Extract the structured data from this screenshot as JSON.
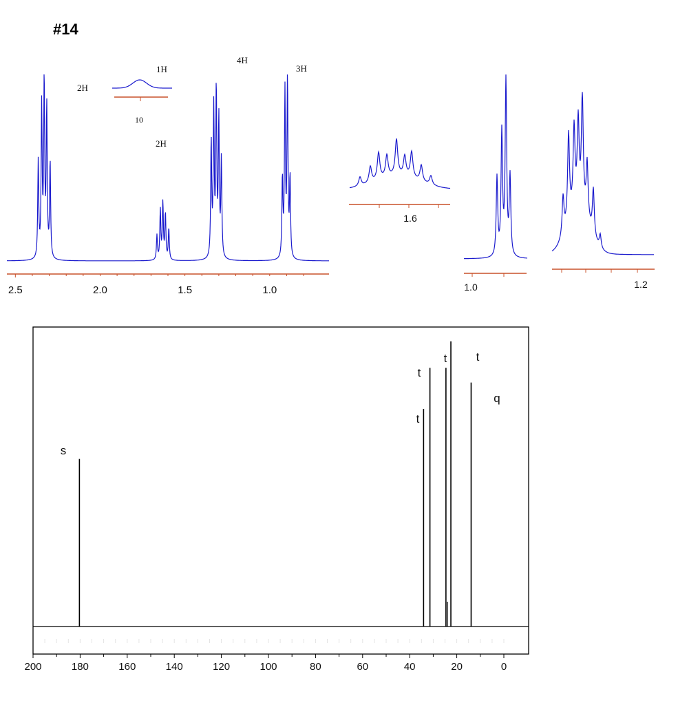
{
  "page_title": "#14",
  "colors": {
    "h_spectrum": "#1a1acd",
    "h_axis": "#c8502a",
    "c_spectrum": "#000000",
    "c_frame": "#000000"
  },
  "chart_data": [
    {
      "id": "h1_nmr",
      "type": "line",
      "title": "",
      "xlabel": "",
      "ylabel": "",
      "x_unit": "ppm",
      "xlim": [
        2.55,
        0.65
      ],
      "x_direction": "reversed",
      "x_ticks": [
        2.5,
        2.0,
        1.5,
        1.0
      ],
      "x_tick_labels": [
        "2.5",
        "2.0",
        "1.5",
        "1.0"
      ],
      "grid": false,
      "series": [
        {
          "peaks": [
            {
              "shift": 2.33,
              "lines": [
                2.365,
                2.345,
                2.33,
                2.315,
                2.295
              ],
              "heights": [
                0.55,
                0.85,
                1.0,
                0.85,
                0.55
              ]
            },
            {
              "shift": 1.63,
              "lines": [
                1.665,
                1.645,
                1.63,
                1.615,
                1.595
              ],
              "heights": [
                0.14,
                0.28,
                0.32,
                0.26,
                0.18
              ]
            },
            {
              "shift": 1.32,
              "lines": [
                1.345,
                1.33,
                1.315,
                1.3,
                1.285
              ],
              "heights": [
                0.66,
                0.83,
                0.95,
                0.78,
                0.55
              ]
            },
            {
              "shift": 0.9,
              "lines": [
                0.925,
                0.91,
                0.895,
                0.88
              ],
              "heights": [
                0.45,
                0.93,
                1.0,
                0.45
              ]
            }
          ]
        }
      ],
      "integrations": [
        {
          "label": "2H",
          "shift": 2.33
        },
        {
          "label": "2H",
          "shift": 1.63
        },
        {
          "label": "4H",
          "shift": 1.32
        },
        {
          "label": "3H",
          "shift": 0.9
        }
      ]
    },
    {
      "id": "h1_inset_acid",
      "type": "line",
      "title": "",
      "x_unit": "ppm",
      "x_tick_labels": [
        "10"
      ],
      "integration_label": "1H",
      "description": "broad singlet"
    },
    {
      "id": "h1_zoom_16",
      "type": "line",
      "title": "",
      "x_unit": "ppm",
      "x_tick_labels": [
        "1.6"
      ],
      "description": "multiplet expansion"
    },
    {
      "id": "h1_zoom_09",
      "type": "line",
      "title": "",
      "x_unit": "ppm",
      "x_tick_labels": [
        "1.0"
      ],
      "description": "triplet expansion"
    },
    {
      "id": "h1_zoom_13",
      "type": "line",
      "title": "",
      "x_unit": "ppm",
      "x_tick_labels": [
        "1.2"
      ],
      "description": "multiplet expansion"
    },
    {
      "id": "c13_nmr",
      "type": "bar",
      "title": "",
      "xlabel": "",
      "ylabel": "",
      "x_unit": "ppm",
      "xlim": [
        200,
        -5
      ],
      "x_direction": "reversed",
      "x_ticks": [
        200,
        180,
        160,
        140,
        120,
        100,
        80,
        60,
        40,
        20,
        0
      ],
      "x_tick_labels": [
        "200",
        "180",
        "160",
        "140",
        "120",
        "100",
        "80",
        "60",
        "40",
        "20",
        "0"
      ],
      "grid": false,
      "peaks": [
        {
          "shift": 180.3,
          "intensity": 0.57,
          "multiplicity": "s"
        },
        {
          "shift": 34.1,
          "intensity": 0.74,
          "multiplicity": "t"
        },
        {
          "shift": 31.4,
          "intensity": 0.88,
          "multiplicity": "t"
        },
        {
          "shift": 24.6,
          "intensity": 0.88,
          "multiplicity": "t"
        },
        {
          "shift": 22.5,
          "intensity": 0.97,
          "multiplicity": "t"
        },
        {
          "shift": 13.9,
          "intensity": 0.83,
          "multiplicity": "q"
        }
      ]
    }
  ]
}
